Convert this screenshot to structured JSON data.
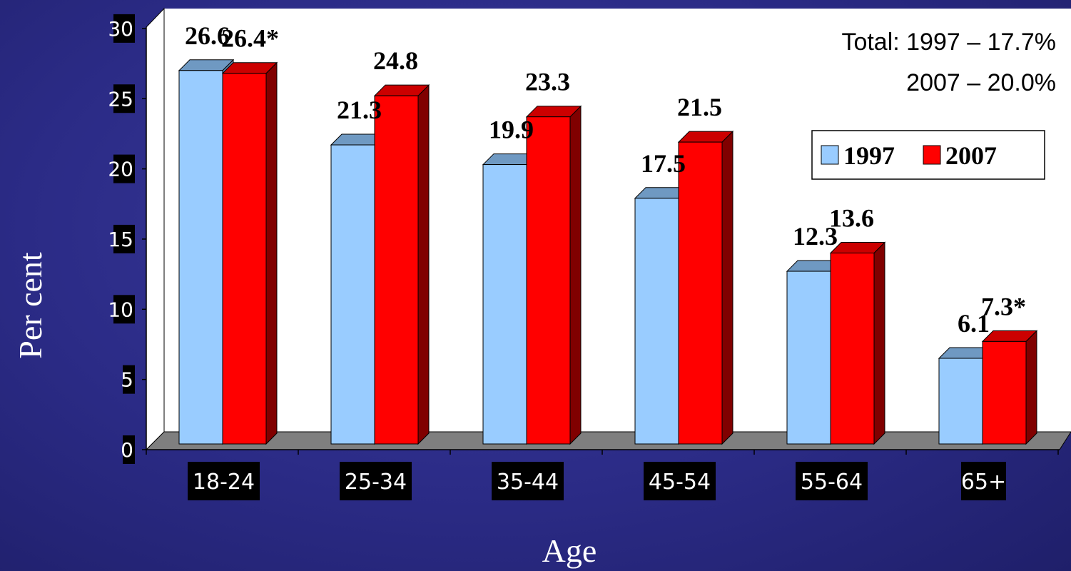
{
  "chart_data": {
    "type": "bar",
    "categories": [
      "18-24",
      "25-34",
      "35-44",
      "45-54",
      "55-64",
      "65+"
    ],
    "series": [
      {
        "name": "1997",
        "values": [
          26.6,
          21.3,
          19.9,
          17.5,
          12.3,
          6.1
        ],
        "labels": [
          "26.6",
          "21.3",
          "19.9",
          "17.5",
          "12.3",
          "6.1"
        ],
        "color": "#99ccff"
      },
      {
        "name": "2007",
        "values": [
          26.4,
          24.8,
          23.3,
          21.5,
          13.6,
          7.3
        ],
        "labels": [
          "26.4*",
          "24.8",
          "23.3",
          "21.5",
          "13.6",
          "7.3*"
        ],
        "color": "#ff0000"
      }
    ],
    "yticks": [
      "0",
      "5",
      "10",
      "15",
      "20",
      "25",
      "30"
    ],
    "ylim": [
      0,
      30
    ],
    "xlabel": "Age",
    "ylabel": "Per cent",
    "annotations": [
      "Total: 1997 – 17.7%",
      "2007 – 20.0%"
    ],
    "legend_position": "right",
    "grid": false,
    "style": "3d-bar"
  }
}
